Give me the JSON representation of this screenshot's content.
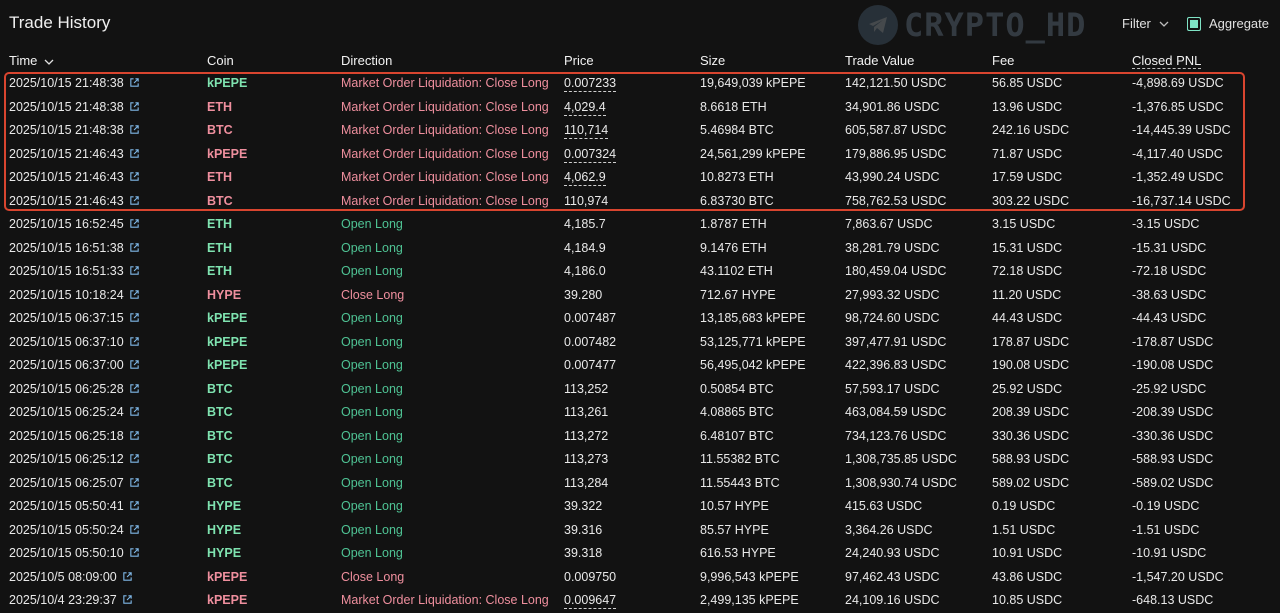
{
  "page": {
    "title": "Trade History"
  },
  "watermark": {
    "text": "CRYPTO_HD"
  },
  "controls": {
    "filter_label": "Filter",
    "aggregate_label": "Aggregate",
    "aggregate_checked": true
  },
  "columns": {
    "time": "Time",
    "coin": "Coin",
    "direction": "Direction",
    "price": "Price",
    "size": "Size",
    "trade_value": "Trade Value",
    "fee": "Fee",
    "closed_pnl": "Closed PNL"
  },
  "colors": {
    "accent": "#7fe3c5",
    "long": "#7fe3b0",
    "short": "#ef8f9e",
    "highlight": "#d9452f",
    "background": "#121212"
  },
  "highlight": {
    "rows": [
      0,
      1,
      2,
      3,
      4,
      5
    ]
  },
  "rows": [
    {
      "time": "2025/10/15 21:48:38",
      "coin": "kPEPE",
      "side": "long",
      "direction": "Market Order Liquidation: Close Long",
      "dir_kind": "close",
      "price": "0.007233",
      "price_dashed": true,
      "size": "19,649,039 kPEPE",
      "trade_value": "142,121.50 USDC",
      "fee": "56.85 USDC",
      "closed_pnl": "-4,898.69 USDC"
    },
    {
      "time": "2025/10/15 21:48:38",
      "coin": "ETH",
      "side": "short",
      "direction": "Market Order Liquidation: Close Long",
      "dir_kind": "close",
      "price": "4,029.4",
      "price_dashed": true,
      "size": "8.6618 ETH",
      "trade_value": "34,901.86 USDC",
      "fee": "13.96 USDC",
      "closed_pnl": "-1,376.85 USDC"
    },
    {
      "time": "2025/10/15 21:48:38",
      "coin": "BTC",
      "side": "short",
      "direction": "Market Order Liquidation: Close Long",
      "dir_kind": "close",
      "price": "110,714",
      "price_dashed": true,
      "size": "5.46984 BTC",
      "trade_value": "605,587.87 USDC",
      "fee": "242.16 USDC",
      "closed_pnl": "-14,445.39 USDC"
    },
    {
      "time": "2025/10/15 21:46:43",
      "coin": "kPEPE",
      "side": "short",
      "direction": "Market Order Liquidation: Close Long",
      "dir_kind": "close",
      "price": "0.007324",
      "price_dashed": true,
      "size": "24,561,299 kPEPE",
      "trade_value": "179,886.95 USDC",
      "fee": "71.87 USDC",
      "closed_pnl": "-4,117.40 USDC"
    },
    {
      "time": "2025/10/15 21:46:43",
      "coin": "ETH",
      "side": "short",
      "direction": "Market Order Liquidation: Close Long",
      "dir_kind": "close",
      "price": "4,062.9",
      "price_dashed": true,
      "size": "10.8273 ETH",
      "trade_value": "43,990.24 USDC",
      "fee": "17.59 USDC",
      "closed_pnl": "-1,352.49 USDC"
    },
    {
      "time": "2025/10/15 21:46:43",
      "coin": "BTC",
      "side": "short",
      "direction": "Market Order Liquidation: Close Long",
      "dir_kind": "close",
      "price": "110,974",
      "price_dashed": true,
      "size": "6.83730 BTC",
      "trade_value": "758,762.53 USDC",
      "fee": "303.22 USDC",
      "closed_pnl": "-16,737.14 USDC"
    },
    {
      "time": "2025/10/15 16:52:45",
      "coin": "ETH",
      "side": "long",
      "direction": "Open Long",
      "dir_kind": "long",
      "price": "4,185.7",
      "price_dashed": false,
      "size": "1.8787 ETH",
      "trade_value": "7,863.67 USDC",
      "fee": "3.15 USDC",
      "closed_pnl": "-3.15 USDC"
    },
    {
      "time": "2025/10/15 16:51:38",
      "coin": "ETH",
      "side": "long",
      "direction": "Open Long",
      "dir_kind": "long",
      "price": "4,184.9",
      "price_dashed": false,
      "size": "9.1476 ETH",
      "trade_value": "38,281.79 USDC",
      "fee": "15.31 USDC",
      "closed_pnl": "-15.31 USDC"
    },
    {
      "time": "2025/10/15 16:51:33",
      "coin": "ETH",
      "side": "long",
      "direction": "Open Long",
      "dir_kind": "long",
      "price": "4,186.0",
      "price_dashed": false,
      "size": "43.1102 ETH",
      "trade_value": "180,459.04 USDC",
      "fee": "72.18 USDC",
      "closed_pnl": "-72.18 USDC"
    },
    {
      "time": "2025/10/15 10:18:24",
      "coin": "HYPE",
      "side": "short",
      "direction": "Close Long",
      "dir_kind": "close",
      "price": "39.280",
      "price_dashed": false,
      "size": "712.67 HYPE",
      "trade_value": "27,993.32 USDC",
      "fee": "11.20 USDC",
      "closed_pnl": "-38.63 USDC"
    },
    {
      "time": "2025/10/15 06:37:15",
      "coin": "kPEPE",
      "side": "long",
      "direction": "Open Long",
      "dir_kind": "long",
      "price": "0.007487",
      "price_dashed": false,
      "size": "13,185,683 kPEPE",
      "trade_value": "98,724.60 USDC",
      "fee": "44.43 USDC",
      "closed_pnl": "-44.43 USDC"
    },
    {
      "time": "2025/10/15 06:37:10",
      "coin": "kPEPE",
      "side": "long",
      "direction": "Open Long",
      "dir_kind": "long",
      "price": "0.007482",
      "price_dashed": false,
      "size": "53,125,771 kPEPE",
      "trade_value": "397,477.91 USDC",
      "fee": "178.87 USDC",
      "closed_pnl": "-178.87 USDC"
    },
    {
      "time": "2025/10/15 06:37:00",
      "coin": "kPEPE",
      "side": "long",
      "direction": "Open Long",
      "dir_kind": "long",
      "price": "0.007477",
      "price_dashed": false,
      "size": "56,495,042 kPEPE",
      "trade_value": "422,396.83 USDC",
      "fee": "190.08 USDC",
      "closed_pnl": "-190.08 USDC"
    },
    {
      "time": "2025/10/15 06:25:28",
      "coin": "BTC",
      "side": "long",
      "direction": "Open Long",
      "dir_kind": "long",
      "price": "113,252",
      "price_dashed": false,
      "size": "0.50854 BTC",
      "trade_value": "57,593.17 USDC",
      "fee": "25.92 USDC",
      "closed_pnl": "-25.92 USDC"
    },
    {
      "time": "2025/10/15 06:25:24",
      "coin": "BTC",
      "side": "long",
      "direction": "Open Long",
      "dir_kind": "long",
      "price": "113,261",
      "price_dashed": false,
      "size": "4.08865 BTC",
      "trade_value": "463,084.59 USDC",
      "fee": "208.39 USDC",
      "closed_pnl": "-208.39 USDC"
    },
    {
      "time": "2025/10/15 06:25:18",
      "coin": "BTC",
      "side": "long",
      "direction": "Open Long",
      "dir_kind": "long",
      "price": "113,272",
      "price_dashed": false,
      "size": "6.48107 BTC",
      "trade_value": "734,123.76 USDC",
      "fee": "330.36 USDC",
      "closed_pnl": "-330.36 USDC"
    },
    {
      "time": "2025/10/15 06:25:12",
      "coin": "BTC",
      "side": "long",
      "direction": "Open Long",
      "dir_kind": "long",
      "price": "113,273",
      "price_dashed": false,
      "size": "11.55382 BTC",
      "trade_value": "1,308,735.85 USDC",
      "fee": "588.93 USDC",
      "closed_pnl": "-588.93 USDC"
    },
    {
      "time": "2025/10/15 06:25:07",
      "coin": "BTC",
      "side": "long",
      "direction": "Open Long",
      "dir_kind": "long",
      "price": "113,284",
      "price_dashed": false,
      "size": "11.55443 BTC",
      "trade_value": "1,308,930.74 USDC",
      "fee": "589.02 USDC",
      "closed_pnl": "-589.02 USDC"
    },
    {
      "time": "2025/10/15 05:50:41",
      "coin": "HYPE",
      "side": "long",
      "direction": "Open Long",
      "dir_kind": "long",
      "price": "39.322",
      "price_dashed": false,
      "size": "10.57 HYPE",
      "trade_value": "415.63 USDC",
      "fee": "0.19 USDC",
      "closed_pnl": "-0.19 USDC"
    },
    {
      "time": "2025/10/15 05:50:24",
      "coin": "HYPE",
      "side": "long",
      "direction": "Open Long",
      "dir_kind": "long",
      "price": "39.316",
      "price_dashed": false,
      "size": "85.57 HYPE",
      "trade_value": "3,364.26 USDC",
      "fee": "1.51 USDC",
      "closed_pnl": "-1.51 USDC"
    },
    {
      "time": "2025/10/15 05:50:10",
      "coin": "HYPE",
      "side": "long",
      "direction": "Open Long",
      "dir_kind": "long",
      "price": "39.318",
      "price_dashed": false,
      "size": "616.53 HYPE",
      "trade_value": "24,240.93 USDC",
      "fee": "10.91 USDC",
      "closed_pnl": "-10.91 USDC"
    },
    {
      "time": "2025/10/5 08:09:00",
      "coin": "kPEPE",
      "side": "short",
      "direction": "Close Long",
      "dir_kind": "close",
      "price": "0.009750",
      "price_dashed": false,
      "size": "9,996,543 kPEPE",
      "trade_value": "97,462.43 USDC",
      "fee": "43.86 USDC",
      "closed_pnl": "-1,547.20 USDC"
    },
    {
      "time": "2025/10/4 23:29:37",
      "coin": "kPEPE",
      "side": "short",
      "direction": "Market Order Liquidation: Close Long",
      "dir_kind": "close",
      "price": "0.009647",
      "price_dashed": true,
      "size": "2,499,135 kPEPE",
      "trade_value": "24,109.16 USDC",
      "fee": "10.85 USDC",
      "closed_pnl": "-648.13 USDC"
    }
  ]
}
